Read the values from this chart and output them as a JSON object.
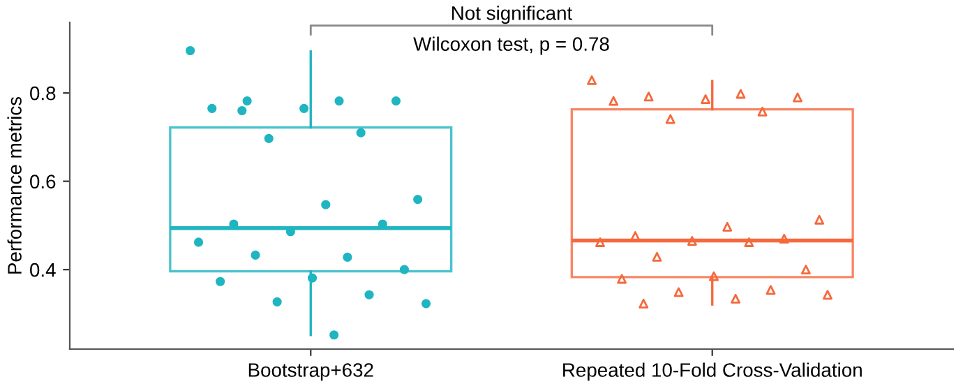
{
  "chart_data": {
    "type": "box",
    "ylabel": "Performance metrics",
    "categories": [
      "Bootstrap+632",
      "Repeated 10-Fold Cross-Validation"
    ],
    "colors": [
      "#1fb5c1",
      "#f5693d"
    ],
    "boxes": [
      {
        "low": 0.252,
        "q1": 0.396,
        "median": 0.494,
        "q3": 0.722,
        "high": 0.894
      },
      {
        "low": 0.321,
        "q1": 0.383,
        "median": 0.466,
        "q3": 0.763,
        "high": 0.827
      }
    ],
    "series": [
      {
        "type": "scatter",
        "marker": "circle",
        "color": "#1fb5c1",
        "x": [
          "Bootstrap+632",
          "Bootstrap+632",
          "Bootstrap+632",
          "Bootstrap+632",
          "Bootstrap+632",
          "Bootstrap+632",
          "Bootstrap+632",
          "Bootstrap+632",
          "Bootstrap+632",
          "Bootstrap+632",
          "Bootstrap+632",
          "Bootstrap+632",
          "Bootstrap+632",
          "Bootstrap+632",
          "Bootstrap+632",
          "Bootstrap+632",
          "Bootstrap+632",
          "Bootstrap+632",
          "Bootstrap+632",
          "Bootstrap+632",
          "Bootstrap+632",
          "Bootstrap+632",
          "Bootstrap+632",
          "Bootstrap+632"
        ],
        "values": [
          0.896,
          0.782,
          0.782,
          0.782,
          0.765,
          0.765,
          0.71,
          0.697,
          0.559,
          0.547,
          0.503,
          0.503,
          0.486,
          0.462,
          0.428,
          0.433,
          0.4,
          0.381,
          0.373,
          0.343,
          0.327,
          0.323,
          0.252,
          0.76
        ]
      },
      {
        "type": "scatter",
        "marker": "triangle",
        "color": "#f5693d",
        "x": [
          "Repeated 10-Fold Cross-Validation",
          "Repeated 10-Fold Cross-Validation",
          "Repeated 10-Fold Cross-Validation",
          "Repeated 10-Fold Cross-Validation",
          "Repeated 10-Fold Cross-Validation",
          "Repeated 10-Fold Cross-Validation",
          "Repeated 10-Fold Cross-Validation",
          "Repeated 10-Fold Cross-Validation",
          "Repeated 10-Fold Cross-Validation",
          "Repeated 10-Fold Cross-Validation",
          "Repeated 10-Fold Cross-Validation",
          "Repeated 10-Fold Cross-Validation",
          "Repeated 10-Fold Cross-Validation",
          "Repeated 10-Fold Cross-Validation",
          "Repeated 10-Fold Cross-Validation",
          "Repeated 10-Fold Cross-Validation",
          "Repeated 10-Fold Cross-Validation",
          "Repeated 10-Fold Cross-Validation",
          "Repeated 10-Fold Cross-Validation",
          "Repeated 10-Fold Cross-Validation",
          "Repeated 10-Fold Cross-Validation",
          "Repeated 10-Fold Cross-Validation",
          "Repeated 10-Fold Cross-Validation",
          "Repeated 10-Fold Cross-Validation"
        ],
        "values": [
          0.829,
          0.798,
          0.792,
          0.79,
          0.786,
          0.782,
          0.758,
          0.741,
          0.513,
          0.497,
          0.476,
          0.47,
          0.465,
          0.462,
          0.462,
          0.429,
          0.4,
          0.385,
          0.379,
          0.354,
          0.349,
          0.343,
          0.334,
          0.323
        ]
      }
    ],
    "ylim": [
      0.22,
      0.96
    ],
    "yticks": [
      0.4,
      0.6,
      0.8
    ],
    "grid": false,
    "legend": false,
    "annotations": [
      "Not significant",
      "Wilcoxon test, p = 0.78"
    ]
  }
}
